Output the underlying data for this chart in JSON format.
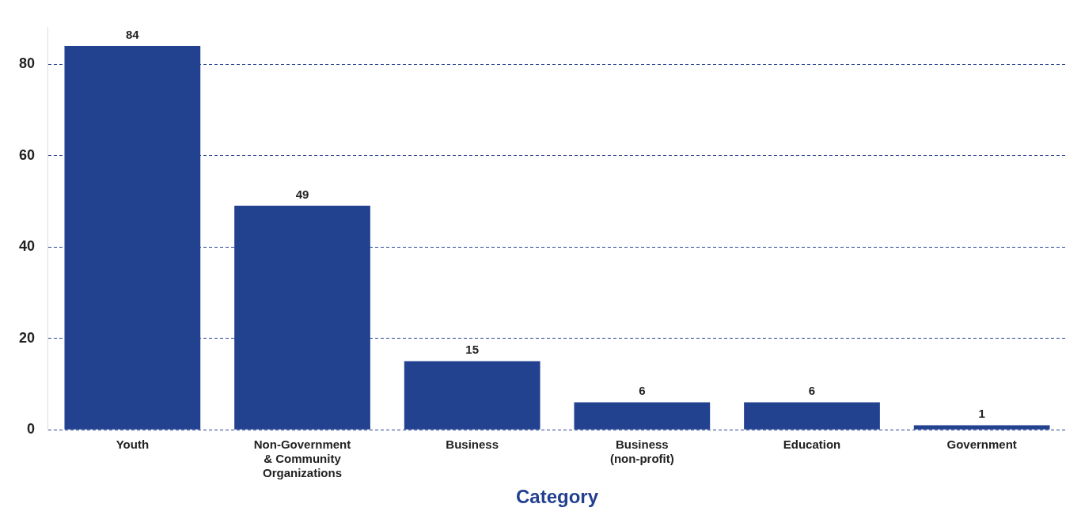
{
  "chart_data": {
    "type": "bar",
    "xlabel": "Category",
    "categories": [
      "Youth",
      "Non-Government & Community Organizations",
      "Business",
      "Business (non-profit)",
      "Education",
      "Government"
    ],
    "values": [
      84,
      49,
      15,
      6,
      6,
      1
    ],
    "color": "#22418f",
    "ylim": [
      0,
      88
    ],
    "yticks": [
      0,
      20,
      40,
      60,
      80
    ],
    "grid": "y",
    "line_style": "dashed",
    "data_labels": true,
    "legend": false
  }
}
